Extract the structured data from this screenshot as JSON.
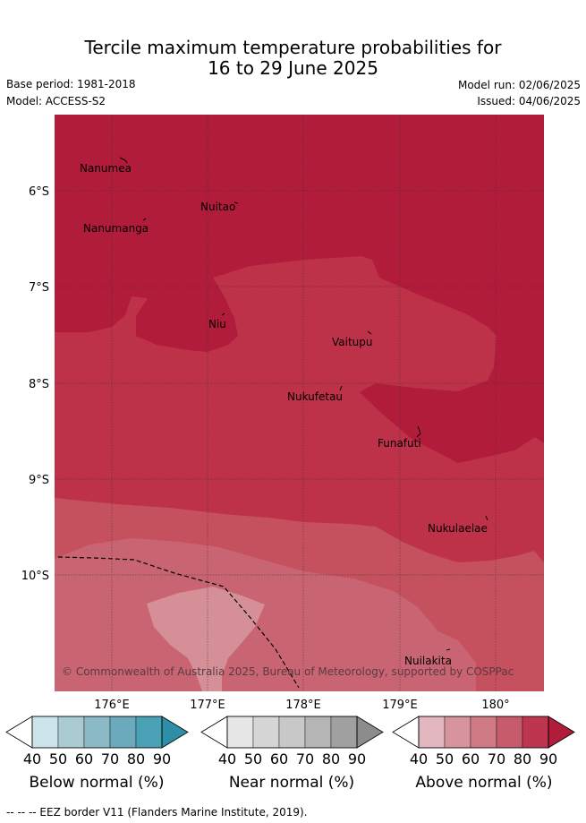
{
  "title": {
    "line1": "Tercile maximum temperature probabilities for",
    "line2": "16 to 29 June 2025"
  },
  "meta": {
    "base_period": "Base period: 1981-2018",
    "model": "Model: ACCESS-S2",
    "model_run": "Model run: 02/06/2025",
    "issued": "Issued: 04/06/2025"
  },
  "map": {
    "lat_labels": [
      "6°S",
      "7°S",
      "8°S",
      "9°S",
      "10°S"
    ],
    "lon_labels": [
      "176°E",
      "177°E",
      "178°E",
      "179°E",
      "180°"
    ],
    "places": [
      {
        "name": "Nanumea"
      },
      {
        "name": "Nuitao"
      },
      {
        "name": "Nanumanga"
      },
      {
        "name": "Niu"
      },
      {
        "name": "Vaitupu"
      },
      {
        "name": "Nukufetau"
      },
      {
        "name": "Funafuti"
      },
      {
        "name": "Nukulaelae"
      },
      {
        "name": "Nuilakita"
      }
    ],
    "copyright": "© Commonwealth of Australia 2025, Bureau of Meteorology, supported by COSPPac",
    "colors": {
      "above_90": "#b01c3a",
      "above_80": "#bd3149",
      "above_70": "#c4515d",
      "above_60": "#c96572",
      "above_50": "#d58f97"
    }
  },
  "colorbars": [
    {
      "title": "Below normal (%)",
      "ticks": [
        "40",
        "50",
        "60",
        "70",
        "80",
        "90"
      ],
      "colors": [
        "#ffffff",
        "#cde3ea",
        "#aacbd1",
        "#8bbac6",
        "#6aaabc",
        "#4aa0b4",
        "#2f8ea7"
      ]
    },
    {
      "title": "Near normal (%)",
      "ticks": [
        "40",
        "50",
        "60",
        "70",
        "80",
        "90"
      ],
      "colors": [
        "#ffffff",
        "#e6e6e6",
        "#d6d6d6",
        "#c8c8c8",
        "#b5b5b5",
        "#a0a0a0",
        "#8c8c8c"
      ]
    },
    {
      "title": "Above normal (%)",
      "ticks": [
        "40",
        "50",
        "60",
        "70",
        "80",
        "90"
      ],
      "colors": [
        "#ffffff",
        "#e3b7bf",
        "#d8949e",
        "#d07a85",
        "#c65b6b",
        "#be3550",
        "#b01c3a"
      ]
    }
  ],
  "footer": "--  --  -- EEZ border V11 (Flanders Marine Institute, 2019)."
}
